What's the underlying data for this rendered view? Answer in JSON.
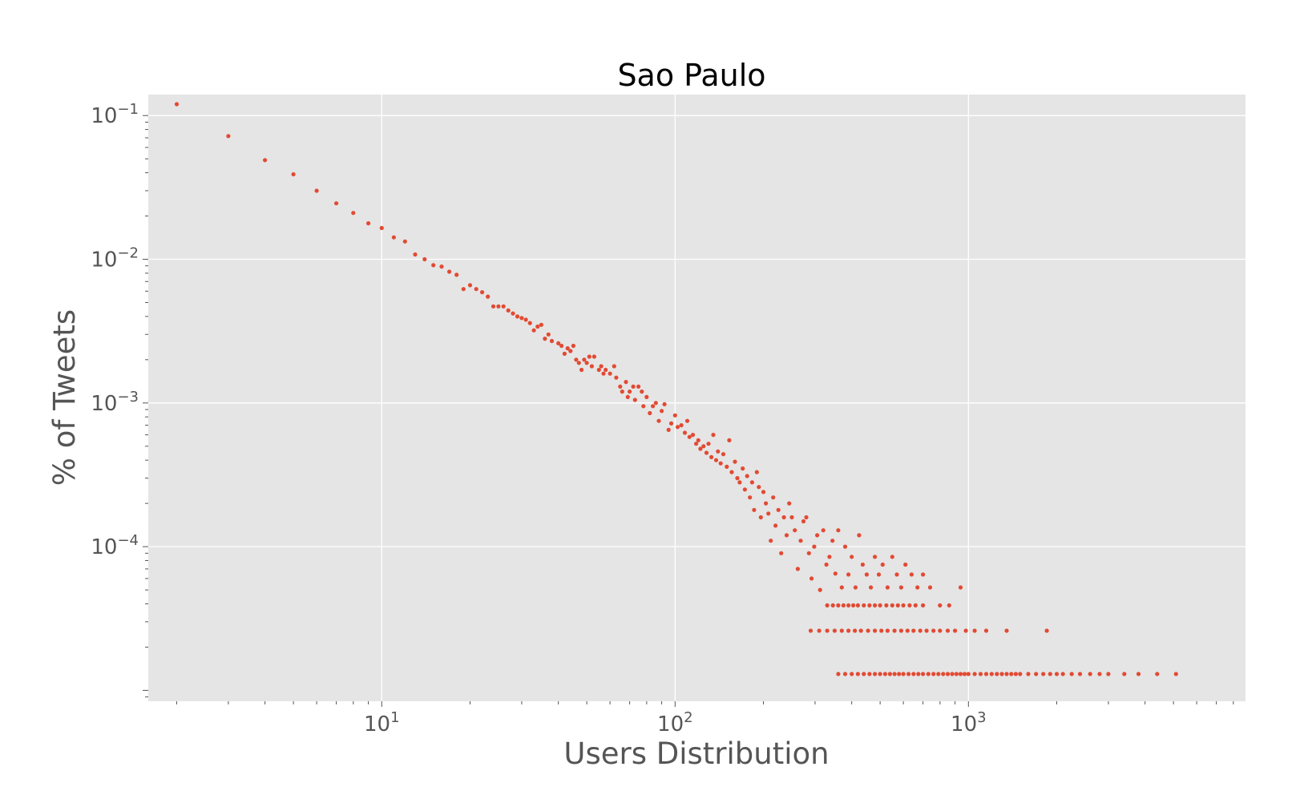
{
  "chart_data": {
    "type": "scatter",
    "title": "Sao Paulo",
    "xlabel": "Users Distribution",
    "ylabel": "% of Tweets",
    "xscale": "log",
    "yscale": "log",
    "xlim": [
      1.6,
      8800
    ],
    "ylim": [
      8.4e-06,
      0.14
    ],
    "grid": true,
    "background": "#e5e5e5",
    "grid_color": "#ffffff",
    "marker_color": "#e24a33",
    "x_ticks": [
      {
        "value": 10,
        "base": "10",
        "exp": "1"
      },
      {
        "value": 100,
        "base": "10",
        "exp": "2"
      },
      {
        "value": 1000,
        "base": "10",
        "exp": "3"
      }
    ],
    "y_ticks": [
      {
        "value": 0.1,
        "base": "10",
        "exp": "−1"
      },
      {
        "value": 0.01,
        "base": "10",
        "exp": "−2"
      },
      {
        "value": 0.001,
        "base": "10",
        "exp": "−3"
      },
      {
        "value": 0.0001,
        "base": "10",
        "exp": "−4"
      }
    ],
    "points": [
      [
        2,
        0.12
      ],
      [
        3,
        0.072
      ],
      [
        4,
        0.049
      ],
      [
        5,
        0.039
      ],
      [
        6,
        0.03
      ],
      [
        7,
        0.0245
      ],
      [
        8,
        0.021
      ],
      [
        9,
        0.0178
      ],
      [
        10,
        0.0165
      ],
      [
        11,
        0.0142
      ],
      [
        12,
        0.0133
      ],
      [
        13,
        0.0108
      ],
      [
        14,
        0.01
      ],
      [
        15,
        0.0091
      ],
      [
        16,
        0.0089
      ],
      [
        17,
        0.0082
      ],
      [
        18,
        0.0078
      ],
      [
        19,
        0.0062
      ],
      [
        20,
        0.0066
      ],
      [
        21,
        0.0062
      ],
      [
        22,
        0.0059
      ],
      [
        23,
        0.0055
      ],
      [
        24,
        0.0047
      ],
      [
        25,
        0.0047
      ],
      [
        26,
        0.0047
      ],
      [
        27,
        0.0044
      ],
      [
        28,
        0.0042
      ],
      [
        29,
        0.004
      ],
      [
        30,
        0.0039
      ],
      [
        31,
        0.0038
      ],
      [
        32,
        0.0036
      ],
      [
        33,
        0.0032
      ],
      [
        34,
        0.0034
      ],
      [
        35,
        0.0035
      ],
      [
        36,
        0.0028
      ],
      [
        37,
        0.003
      ],
      [
        38,
        0.0027
      ],
      [
        40,
        0.0026
      ],
      [
        41,
        0.0025
      ],
      [
        42,
        0.0022
      ],
      [
        43,
        0.0024
      ],
      [
        44,
        0.0023
      ],
      [
        45,
        0.0025
      ],
      [
        46,
        0.002
      ],
      [
        47,
        0.0019
      ],
      [
        48,
        0.0017
      ],
      [
        49,
        0.002
      ],
      [
        50,
        0.0019
      ],
      [
        51,
        0.0021
      ],
      [
        52,
        0.0018
      ],
      [
        53,
        0.0021
      ],
      [
        55,
        0.0017
      ],
      [
        56,
        0.0018
      ],
      [
        57,
        0.0016
      ],
      [
        58,
        0.0017
      ],
      [
        60,
        0.0016
      ],
      [
        62,
        0.0018
      ],
      [
        63,
        0.0015
      ],
      [
        65,
        0.0013
      ],
      [
        66,
        0.0012
      ],
      [
        68,
        0.0014
      ],
      [
        69,
        0.0011
      ],
      [
        70,
        0.0012
      ],
      [
        72,
        0.0013
      ],
      [
        73,
        0.00105
      ],
      [
        75,
        0.0013
      ],
      [
        77,
        0.0012
      ],
      [
        78,
        0.00095
      ],
      [
        80,
        0.0011
      ],
      [
        82,
        0.00085
      ],
      [
        84,
        0.00095
      ],
      [
        86,
        0.001
      ],
      [
        88,
        0.00075
      ],
      [
        90,
        0.00088
      ],
      [
        92,
        0.00098
      ],
      [
        95,
        0.00065
      ],
      [
        97,
        0.00072
      ],
      [
        100,
        0.00082
      ],
      [
        102,
        0.00068
      ],
      [
        105,
        0.0007
      ],
      [
        108,
        0.00062
      ],
      [
        110,
        0.00075
      ],
      [
        112,
        0.00058
      ],
      [
        115,
        0.0006
      ],
      [
        118,
        0.00052
      ],
      [
        120,
        0.00055
      ],
      [
        122,
        0.00048
      ],
      [
        125,
        0.0005
      ],
      [
        128,
        0.00045
      ],
      [
        130,
        0.00052
      ],
      [
        133,
        0.00042
      ],
      [
        135,
        0.0006
      ],
      [
        138,
        0.0004
      ],
      [
        140,
        0.00046
      ],
      [
        143,
        0.00038
      ],
      [
        146,
        0.00044
      ],
      [
        150,
        0.00036
      ],
      [
        153,
        0.00055
      ],
      [
        156,
        0.00033
      ],
      [
        160,
        0.00039
      ],
      [
        163,
        0.0003
      ],
      [
        166,
        0.00028
      ],
      [
        170,
        0.00035
      ],
      [
        173,
        0.00025
      ],
      [
        176,
        0.00031
      ],
      [
        180,
        0.00022
      ],
      [
        183,
        0.00028
      ],
      [
        186,
        0.00018
      ],
      [
        190,
        0.00033
      ],
      [
        193,
        0.00026
      ],
      [
        196,
        0.00016
      ],
      [
        200,
        0.00024
      ],
      [
        204,
        0.0002
      ],
      [
        208,
        0.00017
      ],
      [
        212,
        0.00011
      ],
      [
        216,
        0.00022
      ],
      [
        220,
        0.00014
      ],
      [
        225,
        0.00018
      ],
      [
        230,
        9e-05
      ],
      [
        235,
        0.00016
      ],
      [
        240,
        0.00012
      ],
      [
        245,
        0.0002
      ],
      [
        250,
        0.00016
      ],
      [
        256,
        0.00013
      ],
      [
        262,
        7e-05
      ],
      [
        268,
        0.00011
      ],
      [
        274,
        0.00015
      ],
      [
        280,
        0.00016
      ],
      [
        286,
        9e-05
      ],
      [
        292,
        6e-05
      ],
      [
        298,
        0.0001
      ],
      [
        305,
        0.00012
      ],
      [
        312,
        5e-05
      ],
      [
        320,
        0.00013
      ],
      [
        328,
        7.5e-05
      ],
      [
        336,
        8.5e-05
      ],
      [
        344,
        0.00011
      ],
      [
        352,
        6.5e-05
      ],
      [
        360,
        0.00013
      ],
      [
        370,
        5.2e-05
      ],
      [
        380,
        0.0001
      ],
      [
        390,
        6.4e-05
      ],
      [
        400,
        8.5e-05
      ],
      [
        412,
        5.2e-05
      ],
      [
        424,
        0.00012
      ],
      [
        436,
        7.5e-05
      ],
      [
        450,
        6.4e-05
      ],
      [
        465,
        5.2e-05
      ],
      [
        480,
        8.5e-05
      ],
      [
        495,
        6.4e-05
      ],
      [
        510,
        7.5e-05
      ],
      [
        530,
        5.2e-05
      ],
      [
        550,
        8.5e-05
      ],
      [
        570,
        6.4e-05
      ],
      [
        590,
        5.2e-05
      ],
      [
        610,
        7.5e-05
      ],
      [
        640,
        6.4e-05
      ],
      [
        670,
        5.2e-05
      ],
      [
        700,
        6.4e-05
      ],
      [
        740,
        5.2e-05
      ],
      [
        800,
        3.9e-05
      ],
      [
        860,
        3.9e-05
      ],
      [
        940,
        5.2e-05
      ],
      [
        330,
        3.9e-05
      ],
      [
        345,
        3.9e-05
      ],
      [
        360,
        3.9e-05
      ],
      [
        375,
        3.9e-05
      ],
      [
        390,
        3.9e-05
      ],
      [
        405,
        3.9e-05
      ],
      [
        420,
        3.9e-05
      ],
      [
        440,
        3.9e-05
      ],
      [
        460,
        3.9e-05
      ],
      [
        480,
        3.9e-05
      ],
      [
        500,
        3.9e-05
      ],
      [
        525,
        3.9e-05
      ],
      [
        550,
        3.9e-05
      ],
      [
        575,
        3.9e-05
      ],
      [
        600,
        3.9e-05
      ],
      [
        630,
        3.9e-05
      ],
      [
        660,
        3.9e-05
      ],
      [
        700,
        3.9e-05
      ],
      [
        290,
        2.6e-05
      ],
      [
        310,
        2.6e-05
      ],
      [
        330,
        2.6e-05
      ],
      [
        350,
        2.6e-05
      ],
      [
        370,
        2.6e-05
      ],
      [
        390,
        2.6e-05
      ],
      [
        410,
        2.6e-05
      ],
      [
        430,
        2.6e-05
      ],
      [
        455,
        2.6e-05
      ],
      [
        480,
        2.6e-05
      ],
      [
        505,
        2.6e-05
      ],
      [
        530,
        2.6e-05
      ],
      [
        560,
        2.6e-05
      ],
      [
        590,
        2.6e-05
      ],
      [
        620,
        2.6e-05
      ],
      [
        650,
        2.6e-05
      ],
      [
        685,
        2.6e-05
      ],
      [
        720,
        2.6e-05
      ],
      [
        760,
        2.6e-05
      ],
      [
        800,
        2.6e-05
      ],
      [
        850,
        2.6e-05
      ],
      [
        900,
        2.6e-05
      ],
      [
        980,
        2.6e-05
      ],
      [
        1050,
        2.6e-05
      ],
      [
        1150,
        2.6e-05
      ],
      [
        1350,
        2.6e-05
      ],
      [
        1850,
        2.6e-05
      ],
      [
        360,
        1.3e-05
      ],
      [
        380,
        1.3e-05
      ],
      [
        400,
        1.3e-05
      ],
      [
        420,
        1.3e-05
      ],
      [
        440,
        1.3e-05
      ],
      [
        460,
        1.3e-05
      ],
      [
        480,
        1.3e-05
      ],
      [
        500,
        1.3e-05
      ],
      [
        520,
        1.3e-05
      ],
      [
        540,
        1.3e-05
      ],
      [
        560,
        1.3e-05
      ],
      [
        580,
        1.3e-05
      ],
      [
        600,
        1.3e-05
      ],
      [
        625,
        1.3e-05
      ],
      [
        650,
        1.3e-05
      ],
      [
        675,
        1.3e-05
      ],
      [
        700,
        1.3e-05
      ],
      [
        730,
        1.3e-05
      ],
      [
        760,
        1.3e-05
      ],
      [
        790,
        1.3e-05
      ],
      [
        820,
        1.3e-05
      ],
      [
        850,
        1.3e-05
      ],
      [
        880,
        1.3e-05
      ],
      [
        910,
        1.3e-05
      ],
      [
        940,
        1.3e-05
      ],
      [
        970,
        1.3e-05
      ],
      [
        1000,
        1.3e-05
      ],
      [
        1050,
        1.3e-05
      ],
      [
        1100,
        1.3e-05
      ],
      [
        1150,
        1.3e-05
      ],
      [
        1200,
        1.3e-05
      ],
      [
        1250,
        1.3e-05
      ],
      [
        1300,
        1.3e-05
      ],
      [
        1350,
        1.3e-05
      ],
      [
        1400,
        1.3e-05
      ],
      [
        1450,
        1.3e-05
      ],
      [
        1500,
        1.3e-05
      ],
      [
        1600,
        1.3e-05
      ],
      [
        1700,
        1.3e-05
      ],
      [
        1800,
        1.3e-05
      ],
      [
        1900,
        1.3e-05
      ],
      [
        2000,
        1.3e-05
      ],
      [
        2100,
        1.3e-05
      ],
      [
        2250,
        1.3e-05
      ],
      [
        2400,
        1.3e-05
      ],
      [
        2600,
        1.3e-05
      ],
      [
        2800,
        1.3e-05
      ],
      [
        3000,
        1.3e-05
      ],
      [
        3400,
        1.3e-05
      ],
      [
        3800,
        1.3e-05
      ],
      [
        4400,
        1.3e-05
      ],
      [
        5100,
        1.3e-05
      ]
    ]
  }
}
